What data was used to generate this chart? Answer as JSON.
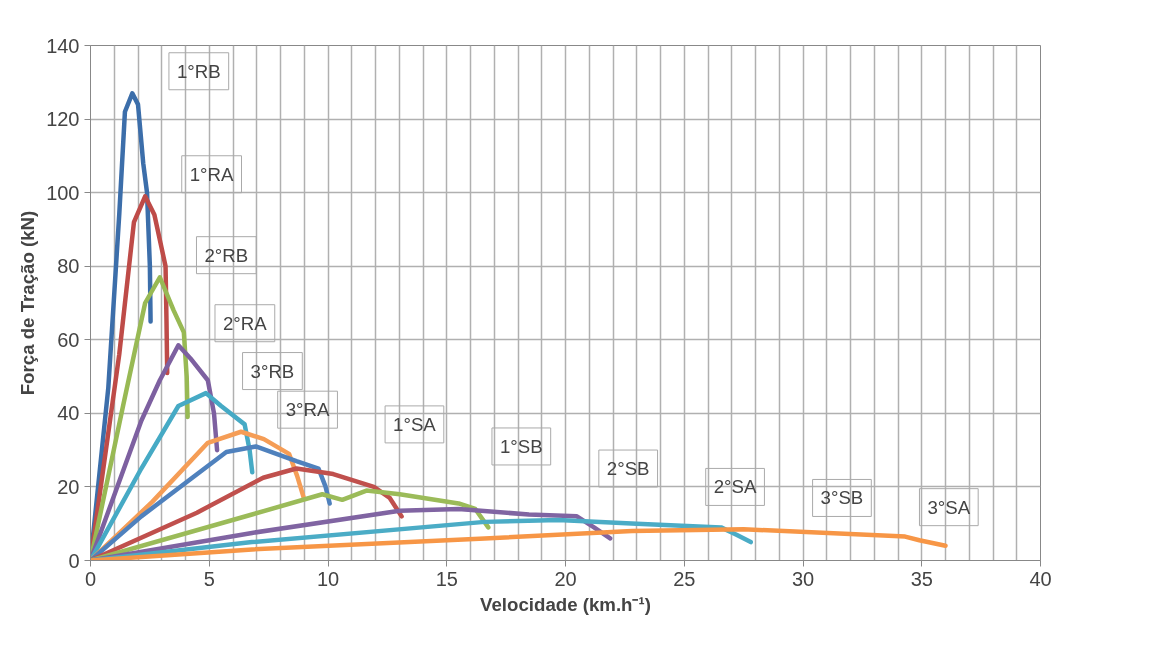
{
  "chart_data": {
    "type": "line",
    "xlabel": "Velocidade (km.h⁻¹)",
    "ylabel": "Força de Tração (kN)",
    "xlim": [
      0,
      40
    ],
    "xticks": [
      0,
      5,
      10,
      15,
      20,
      25,
      30,
      35,
      40
    ],
    "ylim": [
      0,
      140
    ],
    "yticks": [
      0,
      20,
      40,
      60,
      80,
      100,
      120,
      140
    ],
    "grid": true,
    "marker": "none",
    "line_style": "solid",
    "series": [
      {
        "name": "1°RB",
        "color": "#3c6eaa",
        "x": [
          0,
          0.75,
          1.21,
          1.45,
          1.76,
          2.0,
          2.22,
          2.38,
          2.5,
          2.53
        ],
        "values": [
          0,
          47,
          94,
          122,
          127,
          124,
          108,
          100,
          80,
          65
        ]
      },
      {
        "name": "1°RA",
        "color": "#be4b48",
        "x": [
          0,
          1.21,
          1.83,
          2.3,
          2.69,
          3.16,
          3.2,
          3.23
        ],
        "values": [
          0,
          56,
          92,
          99,
          94,
          80,
          65,
          51
        ]
      },
      {
        "name": "2°RB",
        "color": "#98b954",
        "x": [
          0,
          1.37,
          2.3,
          2.92,
          3.5,
          3.93,
          4.05,
          4.09
        ],
        "values": [
          0,
          42,
          70,
          77,
          68,
          62,
          50,
          39
        ]
      },
      {
        "name": "2°RA",
        "color": "#7d60a0",
        "x": [
          0,
          2.14,
          2.92,
          3.7,
          4.2,
          4.94,
          5.2,
          5.33
        ],
        "values": [
          0,
          38,
          49,
          58.5,
          55,
          49,
          40,
          30
        ]
      },
      {
        "name": "3°RB",
        "color": "#46aac5",
        "x": [
          0,
          2.14,
          3.7,
          4.86,
          5.5,
          6.49,
          6.7,
          6.81
        ],
        "values": [
          0,
          25,
          42,
          45.5,
          42,
          37,
          30,
          24
        ]
      },
      {
        "name": "3°RA",
        "color": "#f59d56",
        "x": [
          0,
          2.61,
          4.94,
          6.34,
          7.3,
          8.36,
          8.7,
          8.98
        ],
        "values": [
          0,
          16,
          32,
          35,
          33,
          29,
          23,
          17
        ]
      },
      {
        "name": "1°SA",
        "color": "#4f81bd",
        "x": [
          0,
          2.14,
          5.72,
          6.96,
          8.67,
          9.6,
          9.9,
          10.07
        ],
        "values": [
          0,
          12,
          29.5,
          31,
          27,
          25,
          20,
          15.5
        ]
      },
      {
        "name": "1°SB",
        "color": "#c0504d",
        "x": [
          0,
          4.48,
          7.27,
          8.67,
          10.22,
          11.93,
          12.6,
          13.1
        ],
        "values": [
          0,
          13,
          22.5,
          25,
          23.5,
          20,
          17,
          12
        ]
      },
      {
        "name": "2°SB",
        "color": "#9bbb59",
        "x": [
          0,
          6.8,
          9.76,
          10.6,
          11.62,
          13.02,
          15.5,
          16.2,
          16.75
        ],
        "values": [
          0,
          12.5,
          18,
          16.5,
          19,
          18,
          15.5,
          14,
          9
        ]
      },
      {
        "name": "2°SA",
        "color": "#8064a2",
        "x": [
          0,
          6.8,
          13.02,
          15.5,
          18.46,
          20.48,
          21.2,
          21.88
        ],
        "values": [
          0,
          7.5,
          13.5,
          14,
          12.5,
          12,
          9,
          6
        ]
      },
      {
        "name": "3°SB",
        "color": "#4bacc6",
        "x": [
          0,
          6.8,
          16.6,
          19.7,
          23,
          26.55,
          27.2,
          27.8
        ],
        "values": [
          0,
          5,
          10.5,
          11,
          10,
          9,
          7,
          5
        ]
      },
      {
        "name": "3°SA",
        "color": "#f79646",
        "x": [
          0,
          6.8,
          16.6,
          22.8,
          27.5,
          34.3,
          34.9,
          36.0
        ],
        "values": [
          0,
          3,
          6,
          8,
          8.5,
          6.5,
          5.5,
          4
        ]
      }
    ]
  }
}
